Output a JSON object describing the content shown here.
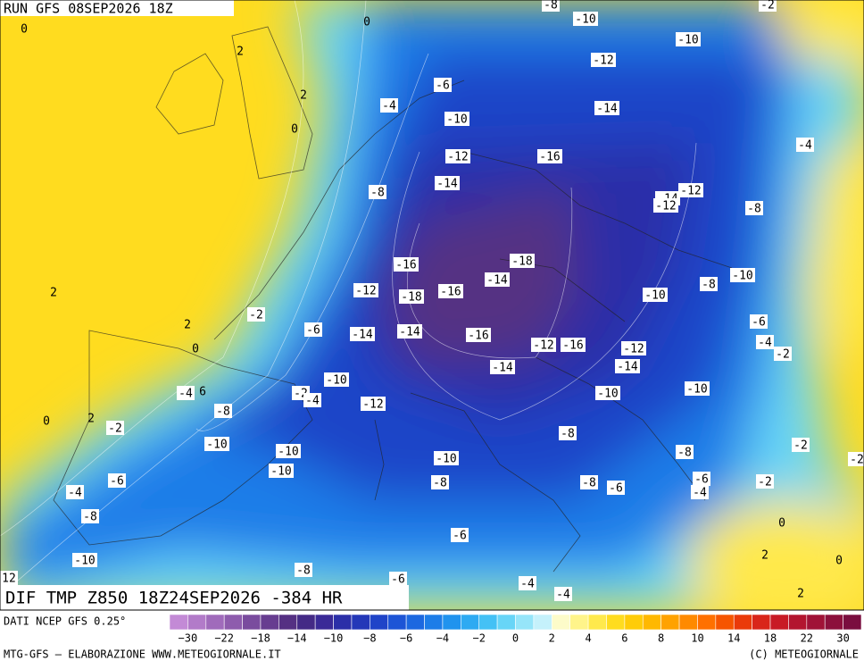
{
  "header": {
    "run": "RUN GFS 08SEP2026 18Z"
  },
  "map": {
    "field": "DIF TMP Z850 18Z24SEP2026 -384 HR",
    "contour_labels": [
      "-8",
      "-10",
      "-2",
      "0",
      "0",
      "-10",
      "2",
      "-12",
      "-6",
      "2",
      "-4",
      "-14",
      "0",
      "-10",
      "-4",
      "-12",
      "-16",
      "-14",
      "-8",
      "-12",
      "-14",
      "-12",
      "-8",
      "-16",
      "-18",
      "-10",
      "2",
      "-12",
      "-14",
      "-18",
      "-16",
      "-8",
      "-10",
      "-2",
      "-6",
      "2",
      "-6",
      "-14",
      "-14",
      "-16",
      "-12",
      "-16",
      "-4",
      "0",
      "-2",
      "-12",
      "-14",
      "-14",
      "-10",
      "-10",
      "-10",
      "-4",
      "6",
      "-2",
      "-4",
      "-12",
      "-8",
      "0",
      "2",
      "-2",
      "-8",
      "-10",
      "-2",
      "-10",
      "-8",
      "-10",
      "-10",
      "-2",
      "-6",
      "-8",
      "-8",
      "-6",
      "-6",
      "-4",
      "-2",
      "-4",
      "-8",
      "0",
      "-6",
      "2",
      "-10",
      "-8",
      "0",
      "12",
      "-6",
      "-4",
      "-4",
      "2"
    ]
  },
  "footer": {
    "source": "DATI NCEP GFS 0.25°",
    "credit_left": "MTG-GFS — ELABORAZIONE WWW.METEOGIORNALE.IT",
    "credit_right": "(C) METEOGIORNALE"
  },
  "colorbar": {
    "labels": [
      "−30",
      "−22",
      "−18",
      "−14",
      "−10",
      "−8",
      "−6",
      "−4",
      "−2",
      "0",
      "2",
      "4",
      "6",
      "8",
      "10",
      "14",
      "18",
      "22",
      "30"
    ],
    "colors": [
      "#c38ad6",
      "#b27bc9",
      "#a06bbb",
      "#8e5cad",
      "#7a4c9e",
      "#673d90",
      "#553083",
      "#442a86",
      "#3a2a97",
      "#2b2fa8",
      "#2438b8",
      "#1f44c8",
      "#1d55d6",
      "#1c68e0",
      "#1d7de8",
      "#2093ee",
      "#2eaaf2",
      "#44c1f5",
      "#68d5f7",
      "#96e5f9",
      "#c5f1fb",
      "#fdfbc9",
      "#fff48a",
      "#ffe94c",
      "#ffdc1f",
      "#ffcc08",
      "#ffb800",
      "#ffa200",
      "#ff8a00",
      "#ff7000",
      "#f65500",
      "#ea3a0a",
      "#d9261a",
      "#c81a25",
      "#b3152f",
      "#a01237",
      "#8c103c",
      "#7a0e3f"
    ]
  }
}
